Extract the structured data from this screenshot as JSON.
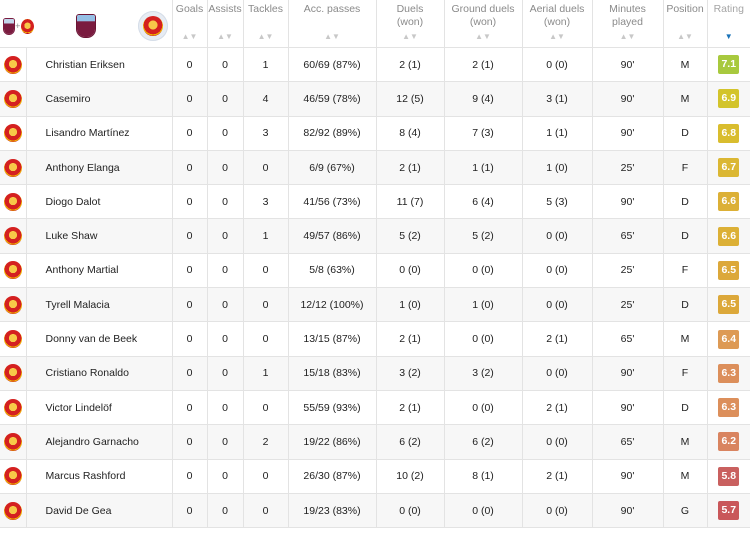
{
  "header": {
    "columns": [
      "Goals",
      "Assists",
      "Tackles",
      "Acc. passes",
      "Duels\n(won)",
      "Ground duels\n(won)",
      "Aerial duels\n(won)",
      "Minutes\nplayed",
      "Position",
      "Rating"
    ],
    "team_filters": [
      {
        "name": "aston-villa-and-manchester-united",
        "selected": false
      },
      {
        "name": "aston-villa",
        "selected": false
      },
      {
        "name": "manchester-united",
        "selected": true
      }
    ],
    "sort_indicator": "▼",
    "sort_icon_inactive": "▲▼"
  },
  "players": [
    {
      "name": "Christian Eriksen",
      "goals": "0",
      "assists": "0",
      "tackles": "1",
      "acc_passes": "60/69 (87%)",
      "duels": "2 (1)",
      "ground_duels": "2 (1)",
      "aerial_duels": "0 (0)",
      "minutes": "90'",
      "position": "M",
      "rating": "7.1",
      "rating_color": "#a8c93e"
    },
    {
      "name": "Casemiro",
      "goals": "0",
      "assists": "0",
      "tackles": "4",
      "acc_passes": "46/59 (78%)",
      "duels": "12 (5)",
      "ground_duels": "9 (4)",
      "aerial_duels": "3 (1)",
      "minutes": "90'",
      "position": "M",
      "rating": "6.9",
      "rating_color": "#d3c42b"
    },
    {
      "name": "Lisandro Martínez",
      "goals": "0",
      "assists": "0",
      "tackles": "3",
      "acc_passes": "82/92 (89%)",
      "duels": "8 (4)",
      "ground_duels": "7 (3)",
      "aerial_duels": "1 (1)",
      "minutes": "90'",
      "position": "D",
      "rating": "6.8",
      "rating_color": "#d9bd2e"
    },
    {
      "name": "Anthony Elanga",
      "goals": "0",
      "assists": "0",
      "tackles": "0",
      "acc_passes": "6/9 (67%)",
      "duels": "2 (1)",
      "ground_duels": "1 (1)",
      "aerial_duels": "1 (0)",
      "minutes": "25'",
      "position": "F",
      "rating": "6.7",
      "rating_color": "#dbb733"
    },
    {
      "name": "Diogo Dalot",
      "goals": "0",
      "assists": "0",
      "tackles": "3",
      "acc_passes": "41/56 (73%)",
      "duels": "11 (7)",
      "ground_duels": "6 (4)",
      "aerial_duels": "5 (3)",
      "minutes": "90'",
      "position": "D",
      "rating": "6.6",
      "rating_color": "#dcb036"
    },
    {
      "name": "Luke Shaw",
      "goals": "0",
      "assists": "0",
      "tackles": "1",
      "acc_passes": "49/57 (86%)",
      "duels": "5 (2)",
      "ground_duels": "5 (2)",
      "aerial_duels": "0 (0)",
      "minutes": "65'",
      "position": "D",
      "rating": "6.6",
      "rating_color": "#dcb036"
    },
    {
      "name": "Anthony Martial",
      "goals": "0",
      "assists": "0",
      "tackles": "0",
      "acc_passes": "5/8 (63%)",
      "duels": "0 (0)",
      "ground_duels": "0 (0)",
      "aerial_duels": "0 (0)",
      "minutes": "25'",
      "position": "F",
      "rating": "6.5",
      "rating_color": "#dca83a"
    },
    {
      "name": "Tyrell Malacia",
      "goals": "0",
      "assists": "0",
      "tackles": "0",
      "acc_passes": "12/12 (100%)",
      "duels": "1 (0)",
      "ground_duels": "1 (0)",
      "aerial_duels": "0 (0)",
      "minutes": "25'",
      "position": "D",
      "rating": "6.5",
      "rating_color": "#dca83a"
    },
    {
      "name": "Donny van de Beek",
      "goals": "0",
      "assists": "0",
      "tackles": "0",
      "acc_passes": "13/15 (87%)",
      "duels": "2 (1)",
      "ground_duels": "0 (0)",
      "aerial_duels": "2 (1)",
      "minutes": "65'",
      "position": "M",
      "rating": "6.4",
      "rating_color": "#dd9a55"
    },
    {
      "name": "Cristiano Ronaldo",
      "goals": "0",
      "assists": "0",
      "tackles": "1",
      "acc_passes": "15/18 (83%)",
      "duels": "3 (2)",
      "ground_duels": "3 (2)",
      "aerial_duels": "0 (0)",
      "minutes": "90'",
      "position": "F",
      "rating": "6.3",
      "rating_color": "#dc8f5b"
    },
    {
      "name": "Victor Lindelöf",
      "goals": "0",
      "assists": "0",
      "tackles": "0",
      "acc_passes": "55/59 (93%)",
      "duels": "2 (1)",
      "ground_duels": "0 (0)",
      "aerial_duels": "2 (1)",
      "minutes": "90'",
      "position": "D",
      "rating": "6.3",
      "rating_color": "#dc8f5b"
    },
    {
      "name": "Alejandro Garnacho",
      "goals": "0",
      "assists": "0",
      "tackles": "2",
      "acc_passes": "19/22 (86%)",
      "duels": "6 (2)",
      "ground_duels": "6 (2)",
      "aerial_duels": "0 (0)",
      "minutes": "65'",
      "position": "M",
      "rating": "6.2",
      "rating_color": "#d98460"
    },
    {
      "name": "Marcus Rashford",
      "goals": "0",
      "assists": "0",
      "tackles": "0",
      "acc_passes": "26/30 (87%)",
      "duels": "10 (2)",
      "ground_duels": "8 (1)",
      "aerial_duels": "2 (1)",
      "minutes": "90'",
      "position": "M",
      "rating": "5.8",
      "rating_color": "#c9605f"
    },
    {
      "name": "David De Gea",
      "goals": "0",
      "assists": "0",
      "tackles": "0",
      "acc_passes": "19/23 (83%)",
      "duels": "0 (0)",
      "ground_duels": "0 (0)",
      "aerial_duels": "0 (0)",
      "minutes": "90'",
      "position": "G",
      "rating": "5.7",
      "rating_color": "#c9575a"
    }
  ]
}
